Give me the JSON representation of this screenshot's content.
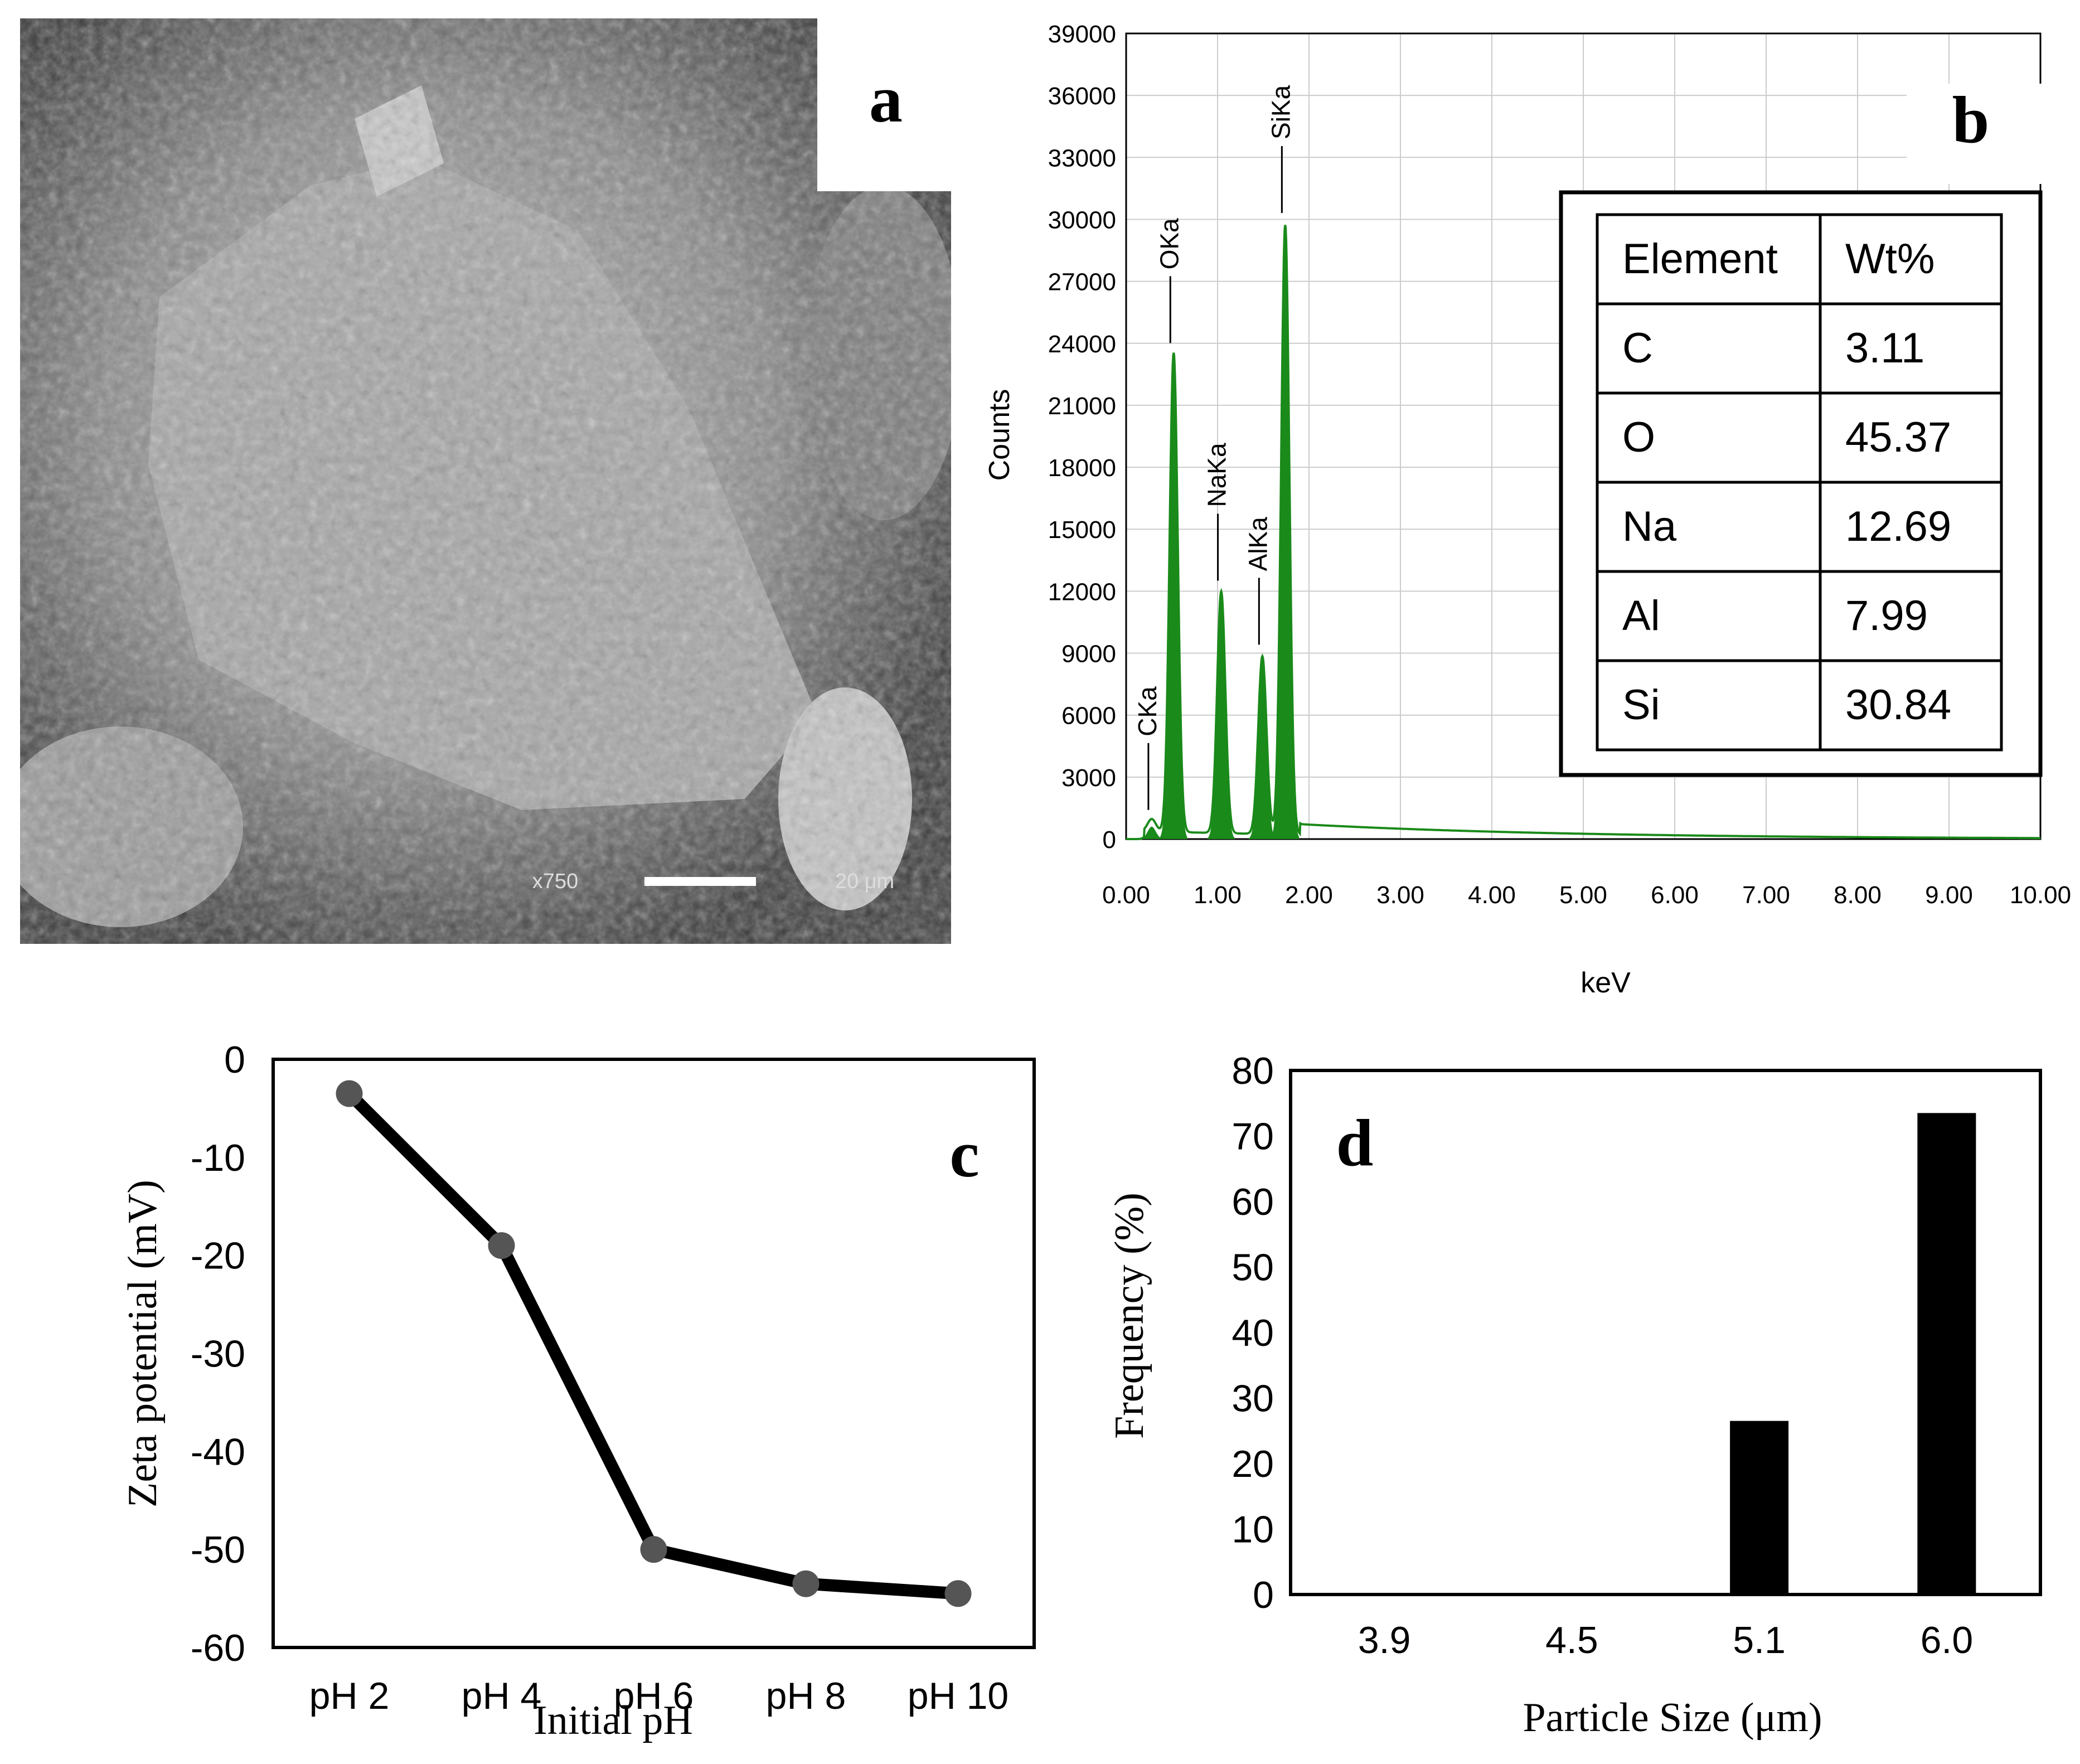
{
  "panel_a": {
    "letter": "a",
    "magnification": "x750",
    "scale_label": "20 μm"
  },
  "panel_b": {
    "letter": "b",
    "table": {
      "headers": [
        "Element",
        "Wt%"
      ],
      "rows": [
        [
          "C",
          "3.11"
        ],
        [
          "O",
          "45.37"
        ],
        [
          "Na",
          "12.69"
        ],
        [
          "Al",
          "7.99"
        ],
        [
          "Si",
          "30.84"
        ]
      ]
    }
  },
  "panel_c": {
    "letter": "c"
  },
  "panel_d": {
    "letter": "d"
  },
  "colors": {
    "eds_peak": "#1a8a1a",
    "line": "#000000",
    "marker": "#555555",
    "bar": "#000000"
  },
  "chart_data": [
    {
      "id": "b",
      "type": "line",
      "title": "",
      "xlabel": "keV",
      "ylabel": "Counts",
      "xlim": [
        0,
        10
      ],
      "ylim": [
        0,
        39000
      ],
      "x_ticks": [
        "0.00",
        "1.00",
        "2.00",
        "3.00",
        "4.00",
        "5.00",
        "6.00",
        "7.00",
        "8.00",
        "9.00",
        "10.00"
      ],
      "y_ticks": [
        "0",
        "3000",
        "6000",
        "9000",
        "12000",
        "15000",
        "18000",
        "21000",
        "24000",
        "27000",
        "30000",
        "33000",
        "36000",
        "39000"
      ],
      "grid": true,
      "peaks": [
        {
          "label": "CKa",
          "energy": 0.28,
          "counts": 600
        },
        {
          "label": "OKa",
          "energy": 0.52,
          "counts": 23200
        },
        {
          "label": "NaKa",
          "energy": 1.04,
          "counts": 11700
        },
        {
          "label": "AlKa",
          "energy": 1.49,
          "counts": 8600
        },
        {
          "label": "SiKa",
          "energy": 1.74,
          "counts": 29500
        }
      ]
    },
    {
      "id": "c",
      "type": "line",
      "title": "",
      "xlabel": "Initial pH",
      "ylabel": "Zeta potential (mV)",
      "categories": [
        "pH 2",
        "pH 4",
        "pH 6",
        "pH 8",
        "pH 10"
      ],
      "values": [
        -3.5,
        -19,
        -50,
        -53.5,
        -54.5
      ],
      "ylim": [
        -60,
        0
      ],
      "y_ticks": [
        "0",
        "-10",
        "-20",
        "-30",
        "-40",
        "-50",
        "-60"
      ],
      "grid": false
    },
    {
      "id": "d",
      "type": "bar",
      "title": "",
      "xlabel": "Particle Size (μm)",
      "ylabel": "Frequency (%)",
      "categories": [
        "3.9",
        "4.5",
        "5.1",
        "6.0"
      ],
      "values": [
        0,
        0,
        26.5,
        73.5
      ],
      "ylim": [
        0,
        80
      ],
      "y_ticks": [
        "0",
        "10",
        "20",
        "30",
        "40",
        "50",
        "60",
        "70",
        "80"
      ],
      "grid": false
    }
  ]
}
